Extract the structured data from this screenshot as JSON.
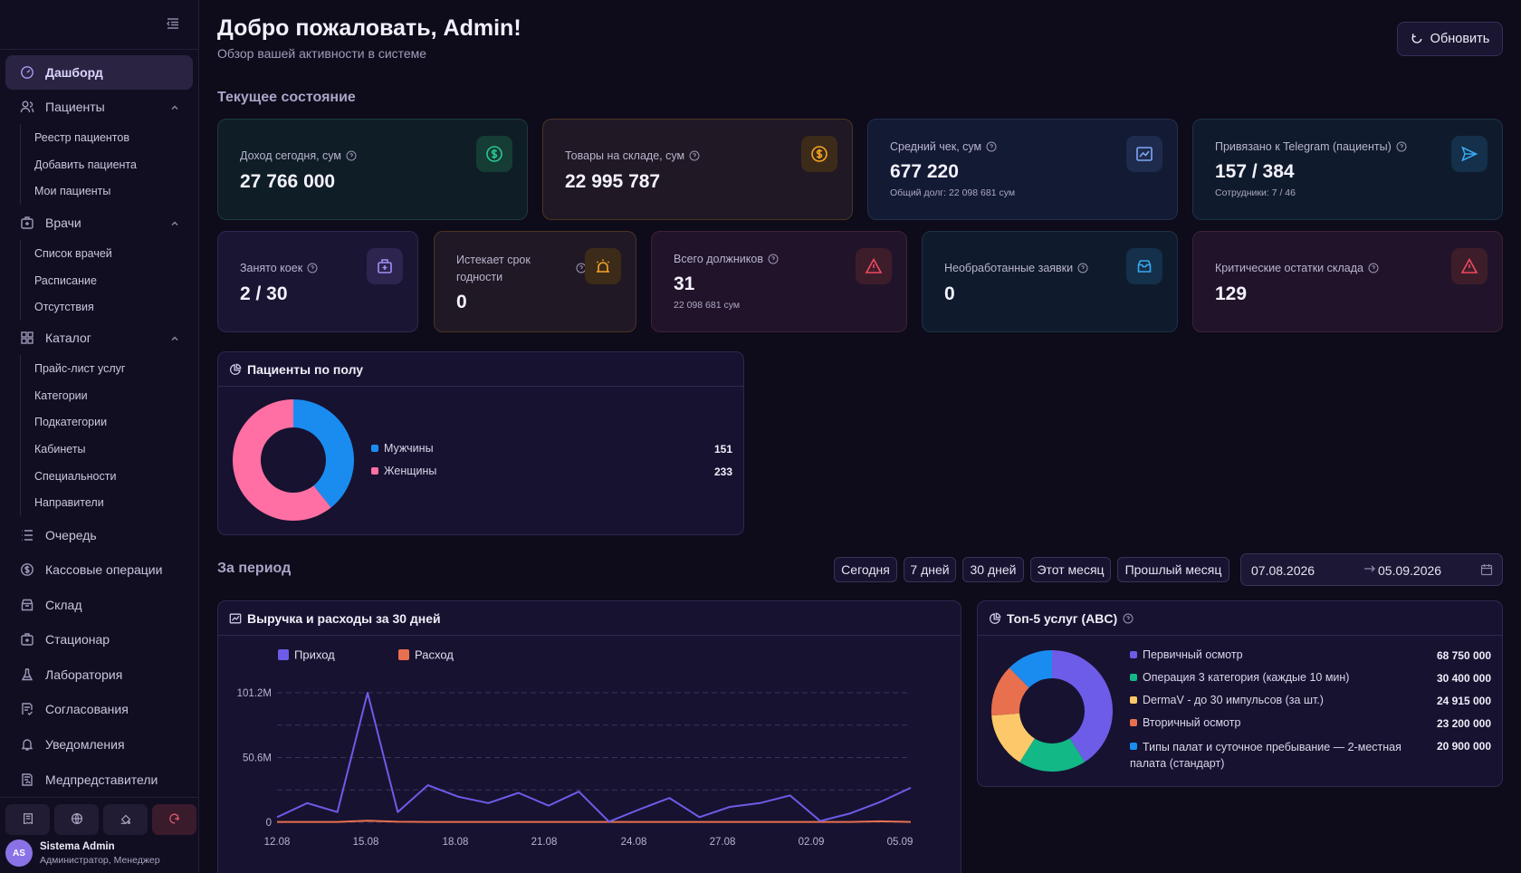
{
  "sidebar": {
    "items": [
      {
        "label": "Дашборд"
      },
      {
        "label": "Пациенты"
      },
      {
        "label": "Врачи"
      },
      {
        "label": "Каталог"
      },
      {
        "label": "Очередь"
      },
      {
        "label": "Кассовые операции"
      },
      {
        "label": "Склад"
      },
      {
        "label": "Стационар"
      },
      {
        "label": "Лаборатория"
      },
      {
        "label": "Согласования"
      },
      {
        "label": "Уведомления"
      },
      {
        "label": "Медпредставители"
      }
    ],
    "patients_sub": [
      "Реестр пациентов",
      "Добавить пациента",
      "Мои пациенты"
    ],
    "doctors_sub": [
      "Список врачей",
      "Расписание",
      "Отсутствия"
    ],
    "catalog_sub": [
      "Прайс-лист услуг",
      "Категории",
      "Подкатегории",
      "Кабинеты",
      "Специальности",
      "Направители"
    ],
    "user": {
      "initials": "AS",
      "name": "Sistema Admin",
      "role": "Администратор, Менеджер"
    }
  },
  "header": {
    "title": "Добро пожаловать, Admin!",
    "subtitle": "Обзор вашей активности в системе",
    "refresh_label": "Обновить"
  },
  "current": {
    "title": "Текущее состояние",
    "cards": [
      {
        "label": "Доход сегодня, сум",
        "value": "27 766 000",
        "icon": "dollar-icon"
      },
      {
        "label": "Товары на складе, сум",
        "value": "22 995 787",
        "icon": "dollar-icon"
      },
      {
        "label": "Средний чек, сум",
        "value": "677 220",
        "note": "Общий долг: 22 098 681 сум",
        "icon": "chart-icon"
      },
      {
        "label": "Привязано к Telegram (пациенты)",
        "value": "157 / 384",
        "note": "Сотрудники: 7 / 46",
        "icon": "send-icon"
      },
      {
        "label": "Занято коек",
        "value": "2 / 30",
        "icon": "bed-icon"
      },
      {
        "label": "Истекает срок годности",
        "value": "0",
        "icon": "alarm-icon"
      },
      {
        "label": "Всего должников",
        "value": "31",
        "note": "22 098 681 сум",
        "icon": "warning-icon"
      },
      {
        "label": "Необработанные заявки",
        "value": "0",
        "icon": "inbox-icon"
      },
      {
        "label": "Критические остатки склада",
        "value": "129",
        "icon": "warning-icon"
      }
    ]
  },
  "gender": {
    "title": "Пациенты по полу",
    "items": [
      {
        "label": "Мужчины",
        "value": 151,
        "color": "#1a8cf0"
      },
      {
        "label": "Женщины",
        "value": 233,
        "color": "#ff6fa3"
      }
    ]
  },
  "period": {
    "title": "За период",
    "buttons": [
      "Сегодня",
      "7 дней",
      "30 дней",
      "Этот месяц",
      "Прошлый месяц"
    ],
    "date_from": "07.08.2026",
    "date_to": "05.09.2026"
  },
  "revenue_panel": {
    "title": "Выручка и расходы за 30 дней"
  },
  "top_services": {
    "title": "Топ-5 услуг (ABC)",
    "items": [
      {
        "label": "Первичный осмотр",
        "value": "68 750 000",
        "amount": 68750000,
        "color": "#6d5ce8"
      },
      {
        "label": "Операция 3 категория (каждые 10 мин)",
        "value": "30 400 000",
        "amount": 30400000,
        "color": "#12b886"
      },
      {
        "label": "DermaV - до 30 импульсов (за шт.)",
        "value": "24 915 000",
        "amount": 24915000,
        "color": "#fcc86a"
      },
      {
        "label": "Вторичный осмотр",
        "value": "23 200 000",
        "amount": 23200000,
        "color": "#e8704e"
      },
      {
        "label": "Типы палат и суточное пребывание — 2-местная палата (стандарт)",
        "value": "20 900 000",
        "amount": 20900000,
        "color": "#1a8cf0"
      }
    ]
  },
  "chart_data": {
    "type": "line",
    "title": "Выручка и расходы за 30 дней",
    "x_ticks": [
      "12.08",
      "15.08",
      "18.08",
      "21.08",
      "24.08",
      "27.08",
      "02.09",
      "05.09"
    ],
    "y_ticks": [
      "0",
      "50.6M",
      "101.2M"
    ],
    "ylim": [
      0,
      101.2
    ],
    "legend_position": "top-left",
    "grid": true,
    "series": [
      {
        "name": "Приход",
        "color": "#6d5ce8",
        "values": [
          4,
          15,
          8,
          101.2,
          8,
          29,
          20,
          15,
          23,
          13,
          24,
          0.5,
          10,
          19,
          4,
          12,
          15,
          21,
          1,
          7,
          16,
          27
        ]
      },
      {
        "name": "Расход",
        "color": "#e8704e",
        "values": [
          0.3,
          0.3,
          0.3,
          1.2,
          0.4,
          0.3,
          0.3,
          0.3,
          0.3,
          0.3,
          0.3,
          0.3,
          0.3,
          0.3,
          0.3,
          0.3,
          0.3,
          0.3,
          0.3,
          0.3,
          0.8,
          0.3
        ]
      }
    ]
  }
}
